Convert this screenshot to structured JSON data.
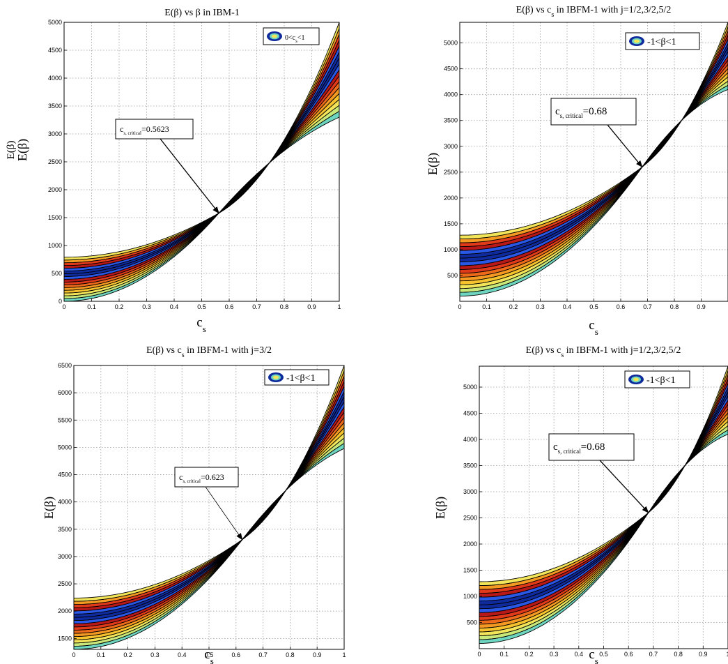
{
  "chart_data": [
    {
      "type": "area",
      "title": "E(β) vs β in IBM-1",
      "xlabel": "cs",
      "ylabel": "E(β)",
      "outer_ylabel": "E(β)",
      "xlim": [
        0,
        1
      ],
      "ylim": [
        0,
        5000
      ],
      "xticks": [
        "0",
        "0.1",
        "0.2",
        "0.3",
        "0.4",
        "0.5",
        "0.6",
        "0.7",
        "0.8",
        "0.9",
        "1"
      ],
      "yticks": [
        "0",
        "500",
        "1000",
        "1500",
        "2000",
        "2500",
        "3000",
        "3500",
        "4000",
        "4500",
        "5000"
      ],
      "grid": true,
      "legend": "0<cs<1",
      "legend_position": "top-right",
      "annotation": {
        "label": "cs, critical",
        "value": "=0.5623",
        "x": 0.5623,
        "y": 1580
      },
      "band_lower": {
        "x": [
          0,
          0.5623,
          1
        ],
        "y": [
          0,
          1580,
          3300
        ]
      },
      "band_upper": {
        "x": [
          0,
          0.5623,
          1
        ],
        "y": [
          790,
          1580,
          5000
        ]
      },
      "bands": 16
    },
    {
      "type": "area",
      "title": "E(β) vs cs in IBFM-1 with j=1/2,3/2,5/2",
      "xlabel": "cs",
      "ylabel": "E(β)",
      "xlim": [
        0,
        1
      ],
      "ylim": [
        0,
        5400
      ],
      "xticks": [
        "0",
        "0.1",
        "0.2",
        "0.3",
        "0.4",
        "0.5",
        "0.6",
        "0.7",
        "0.8",
        "0.9"
      ],
      "yticks": [
        "500",
        "1000",
        "1500",
        "2000",
        "2500",
        "3000",
        "3500",
        "4000",
        "4500",
        "5000"
      ],
      "grid": true,
      "legend": "-1<β<1",
      "legend_position": "top-right",
      "annotation": {
        "label": "cs, critical",
        "value": "=0.68",
        "x": 0.68,
        "y": 2600
      },
      "band_lower": {
        "x": [
          0,
          0.68,
          1
        ],
        "y": [
          100,
          2600,
          4100
        ]
      },
      "band_upper": {
        "x": [
          0,
          0.68,
          1
        ],
        "y": [
          1280,
          2600,
          5400
        ]
      },
      "bands": 16
    },
    {
      "type": "area",
      "title": "E(β) vs cs in IBFM-1 with j=3/2",
      "xlabel": "cs",
      "ylabel": "E(β)",
      "xlim": [
        0,
        1
      ],
      "ylim": [
        1300,
        6500
      ],
      "xticks": [
        "0",
        "0.1",
        "0.2",
        "0.3",
        "0.4",
        "0.5",
        "0.6",
        "0.7",
        "0.8",
        "0.9",
        "1"
      ],
      "yticks": [
        "1500",
        "2000",
        "2500",
        "3000",
        "3500",
        "4000",
        "4500",
        "5000",
        "5500",
        "6000",
        "6500"
      ],
      "grid": true,
      "legend": "-1<β<1",
      "legend_position": "top-right",
      "annotation": {
        "label": "cs, critical",
        "value": "=0.623",
        "x": 0.623,
        "y": 3310
      },
      "band_lower": {
        "x": [
          0,
          0.623,
          1
        ],
        "y": [
          1300,
          3310,
          4980
        ]
      },
      "band_upper": {
        "x": [
          0,
          0.623,
          1
        ],
        "y": [
          2240,
          3310,
          6500
        ]
      },
      "bands": 16
    },
    {
      "type": "area",
      "title": "E(β) vs cs in IBFM-1 with j=1/2,3/2,5/2",
      "xlabel": "cs",
      "ylabel": "E(β)",
      "xlim": [
        0,
        1
      ],
      "ylim": [
        0,
        5400
      ],
      "xticks": [
        "0",
        "0.1",
        "0.2",
        "0.3",
        "0.4",
        "0.5",
        "0.6",
        "0.7",
        "0.8",
        "0.9",
        "1"
      ],
      "yticks": [
        "500",
        "1000",
        "1500",
        "2000",
        "2500",
        "3000",
        "3500",
        "4000",
        "4500",
        "5000"
      ],
      "grid": true,
      "legend": "-1<β<1",
      "legend_position": "top-right",
      "annotation": {
        "label": "cs, critical",
        "value": "=0.68",
        "x": 0.68,
        "y": 2600
      },
      "band_lower": {
        "x": [
          0,
          0.68,
          1
        ],
        "y": [
          100,
          2600,
          4100
        ]
      },
      "band_upper": {
        "x": [
          0,
          0.68,
          1
        ],
        "y": [
          1280,
          2600,
          5400
        ]
      },
      "bands": 16
    }
  ],
  "colors": {
    "bands": [
      "#6ed6c0",
      "#c8e87a",
      "#f3e55a",
      "#f6c22d",
      "#f49a22",
      "#ee6a1b",
      "#e13a1a",
      "#b81818",
      "#2a58e6",
      "#0f2a9c",
      "#0f2a9c",
      "#2a58e6",
      "#b81818",
      "#e13a1a",
      "#f49a22",
      "#f3e55a"
    ],
    "outline": "#000000",
    "grid": "#9a9a9a"
  }
}
